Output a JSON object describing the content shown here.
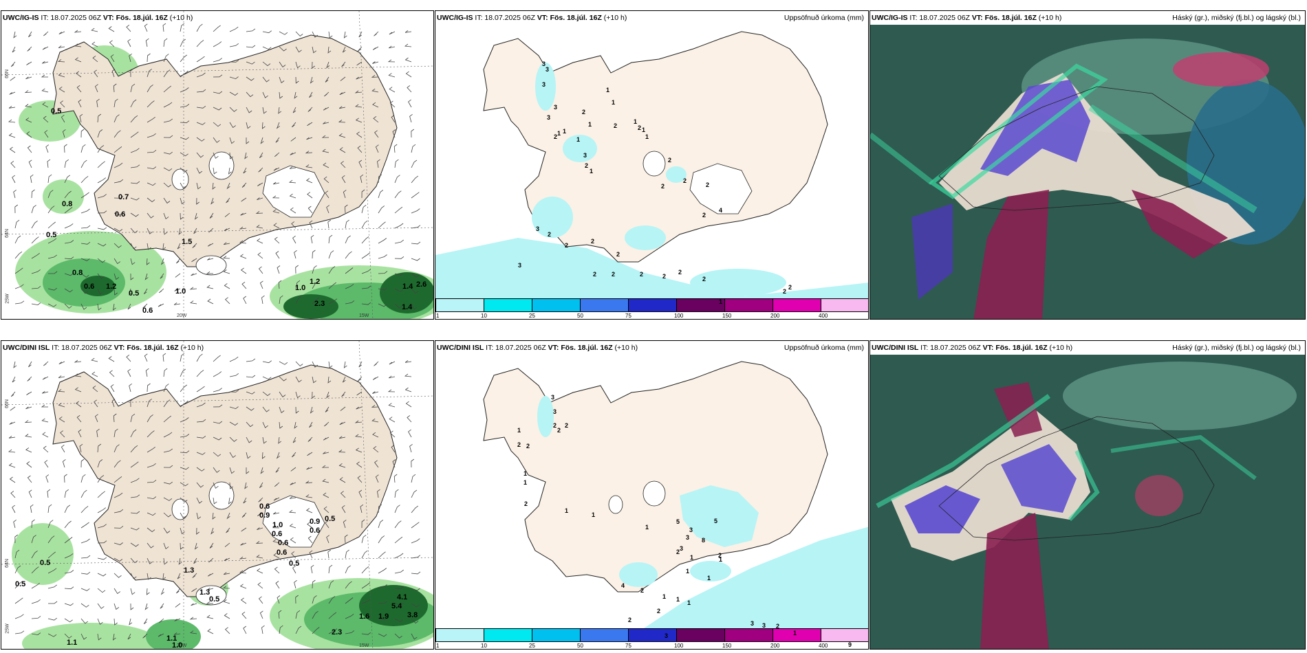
{
  "panels": {
    "top_left": {
      "title_model": "UWC/IG-IS",
      "title_it": "IT: 18.07.2025 06Z",
      "title_vt": "VT: Fös. 18.júl. 16Z",
      "title_lead": "(+10 h)"
    },
    "top_mid": {
      "title_model": "UWC/IG-IS",
      "title_it": "IT: 18.07.2025 06Z",
      "title_vt": "VT: Fös. 18.júl. 16Z",
      "title_lead": "(+10 h)",
      "right": "Uppsöfnuð úrkoma (mm)"
    },
    "top_right": {
      "title_model": "UWC/IG-IS",
      "title_it": "IT: 18.07.2025 06Z",
      "title_vt": "VT: Fös. 18.júl. 16Z",
      "title_lead": "(+10 h)",
      "right": "Háský (gr.), miðský (fj.bl.) og lágský (bl.)"
    },
    "bot_left": {
      "title_model": "UWC/DINI ISL",
      "title_it": "IT: 18.07.2025 06Z",
      "title_vt": "VT: Fös. 18.júl. 16Z",
      "title_lead": "(+10 h)"
    },
    "bot_mid": {
      "title_model": "UWC/DINI ISL",
      "title_it": "IT: 18.07.2025 06Z",
      "title_vt": "VT: Fös. 18.júl. 16Z",
      "title_lead": "(+10 h)",
      "right": "Uppsöfnuð úrkoma (mm)"
    },
    "bot_right": {
      "title_model": "UWC/DINI ISL",
      "title_it": "IT: 18.07.2025 06Z",
      "title_vt": "VT: Fös. 18.júl. 16Z",
      "title_lead": "(+10 h)",
      "right": "Háský (gr.), miðský (fj.bl.) og lágský (bl.)"
    }
  },
  "axis_labels": {
    "lat66": "66N",
    "lat64": "64N",
    "lon25": "25W",
    "lon20": "20W",
    "lon15": "15W"
  },
  "colorbar": {
    "ticks": [
      "1",
      "10",
      "25",
      "50",
      "75",
      "100",
      "150",
      "200",
      "400"
    ],
    "colors": [
      "#b8f4f8",
      "#00e8f0",
      "#00c0f0",
      "#3a78f0",
      "#2028c8",
      "#6a0060",
      "#a00080",
      "#e000b0",
      "#f8b8f0"
    ]
  },
  "colors": {
    "land": "#efe3d4",
    "precip_land": "#fbf1e6",
    "precip_sea": "#b6f4f6",
    "green_light": "#a8e2a0",
    "green_mid": "#5cba6a",
    "green_dark": "#1e6a2e",
    "cloud_bg": "#2e5a50"
  },
  "top_left_values": [
    "0.5",
    "0.8",
    "0.7",
    "0.6",
    "0.5",
    "1.5",
    "0.8",
    "0.6",
    "1.2",
    "0.5",
    "0.6",
    "1.0",
    "1.0",
    "1.2",
    "2.3",
    "1.4",
    "2.6",
    "1.4"
  ],
  "bot_left_values": [
    "0.6",
    "0.9",
    "1.0",
    "0.6",
    "0.6",
    "0.6",
    "0.9",
    "0.5",
    "0.6",
    "0.5",
    "0.5",
    "0.5",
    "1.3",
    "1.3",
    "0.5",
    "1.1",
    "1.1",
    "1.0",
    "4.1",
    "5.4",
    "1.6",
    "1.9",
    "3.8",
    "2.3"
  ],
  "top_mid_values": [
    "3",
    "3",
    "3",
    "1",
    "1",
    "3",
    "3",
    "2",
    "1",
    "1",
    "2",
    "1",
    "1",
    "2",
    "1",
    "1",
    "1",
    "2",
    "3",
    "2",
    "1",
    "2",
    "2",
    "2",
    "2",
    "4",
    "2",
    "2",
    "3",
    "2",
    "2",
    "2",
    "2",
    "2",
    "3",
    "2",
    "2",
    "2",
    "1",
    "2",
    "2",
    "2"
  ],
  "bot_mid_values": [
    "3",
    "3",
    "2",
    "2",
    "2",
    "1",
    "2",
    "2",
    "1",
    "1",
    "2",
    "1",
    "1",
    "1",
    "5",
    "5",
    "3",
    "3",
    "8",
    "3",
    "2",
    "2",
    "1",
    "1",
    "1",
    "1",
    "4",
    "2",
    "1",
    "1",
    "1",
    "2",
    "2",
    "3",
    "3",
    "3",
    "2",
    "9",
    "1"
  ]
}
